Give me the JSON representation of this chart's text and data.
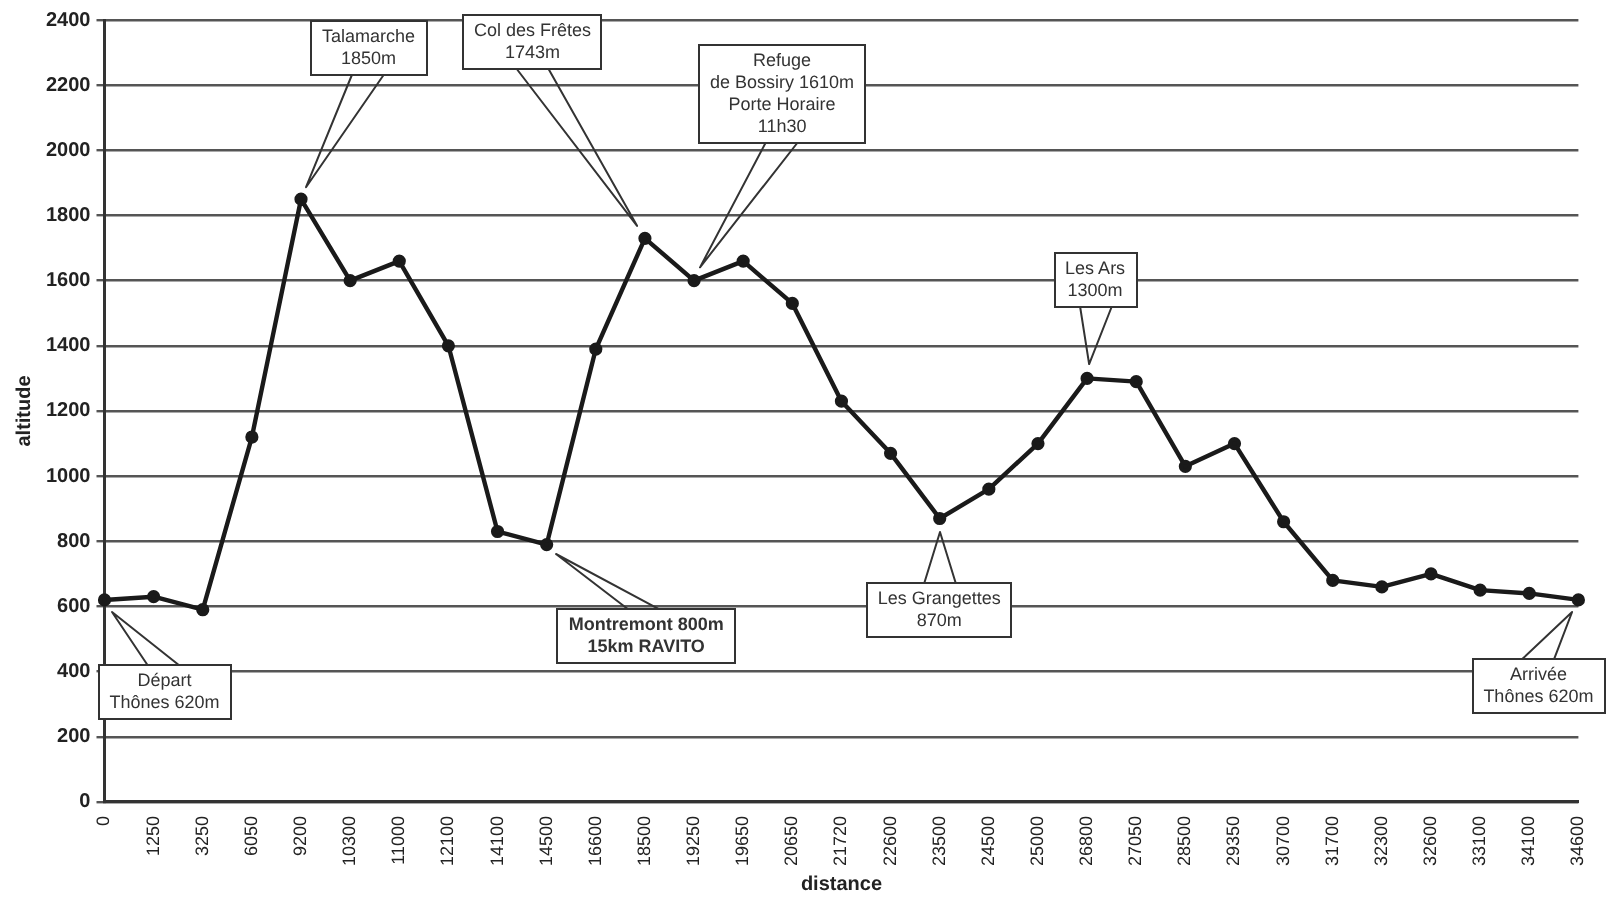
{
  "chart_data": {
    "type": "line",
    "xlabel": "distance",
    "ylabel": "altitude",
    "categories": [
      "0",
      "1250",
      "3250",
      "6050",
      "9200",
      "10300",
      "11000",
      "12100",
      "14100",
      "14500",
      "16600",
      "18500",
      "19250",
      "19650",
      "20650",
      "21720",
      "22600",
      "23500",
      "24500",
      "25000",
      "26800",
      "27050",
      "28500",
      "29350",
      "30700",
      "31700",
      "32300",
      "32600",
      "33100",
      "34100",
      "34600"
    ],
    "series": [
      {
        "color": "#1a1a1a",
        "values": [
          620,
          630,
          590,
          1120,
          1850,
          1600,
          1660,
          1400,
          830,
          790,
          1390,
          1730,
          1600,
          1660,
          1530,
          1230,
          1070,
          870,
          960,
          1100,
          1300,
          1290,
          1030,
          1100,
          860,
          680,
          660,
          700,
          650,
          640,
          620
        ]
      }
    ],
    "ylim": [
      0,
      2400
    ],
    "yticks": [
      0,
      200,
      400,
      600,
      800,
      1000,
      1200,
      1400,
      1600,
      1800,
      2000,
      2200,
      2400
    ],
    "grid": "y",
    "legend": false,
    "marker": "circle",
    "line_style": "solid",
    "annotations": [
      "Départ\nThônes 620m",
      "Talamarche\n1850m",
      "Montremont 800m\n15km  RAVITO",
      "Col des Frêtes\n1743m",
      "Refuge\nde Bossiry 1610m\nPorte Horaire\n11h30",
      "Les Grangettes\n870m",
      "Les Ars\n1300m",
      "Arrivée\nThônes 620m"
    ]
  }
}
